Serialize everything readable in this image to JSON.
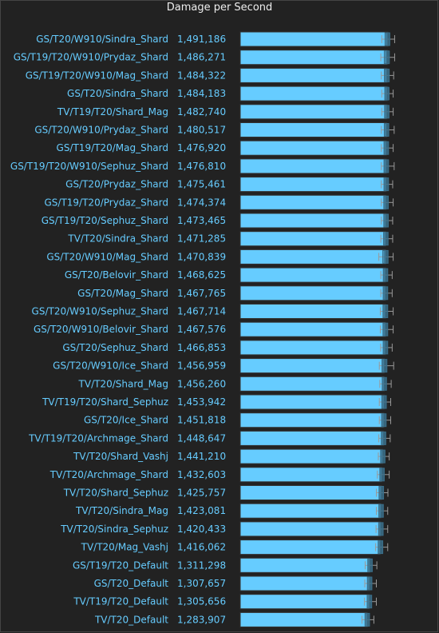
{
  "chart_data": {
    "type": "bar",
    "orientation": "horizontal",
    "title": "Damage per Second",
    "colors": {
      "background": "#222222",
      "bar": "#66ccff",
      "bar_border": "#333333",
      "label": "#66ccff",
      "box": "#3a6f8a",
      "whisker": "#999999",
      "title": "#eeeeee"
    },
    "xlim": [
      0,
      1560000
    ],
    "rows": [
      {
        "name": "GS/T20/W910/Sindra_Shard",
        "value": 1491186,
        "value_label": "1,491,186",
        "q1": 1462000,
        "q3": 1510000,
        "min": 1430000,
        "max": 1560000
      },
      {
        "name": "GS/T19/T20/W910/Prydaz_Shard",
        "value": 1486271,
        "value_label": "1,486,271",
        "q1": 1455000,
        "q3": 1505000,
        "min": 1420000,
        "max": 1560000
      },
      {
        "name": "GS/T19/T20/W910/Mag_Shard",
        "value": 1484322,
        "value_label": "1,484,322",
        "q1": 1456000,
        "q3": 1505000,
        "min": 1425000,
        "max": 1550000
      },
      {
        "name": "GS/T20/Sindra_Shard",
        "value": 1484183,
        "value_label": "1,484,183",
        "q1": 1460000,
        "q3": 1500000,
        "min": 1430000,
        "max": 1545000
      },
      {
        "name": "TV/T19/T20/Shard_Mag",
        "value": 1482740,
        "value_label": "1,482,740",
        "q1": 1458000,
        "q3": 1502000,
        "min": 1430000,
        "max": 1545000
      },
      {
        "name": "GS/T20/W910/Prydaz_Shard",
        "value": 1480517,
        "value_label": "1,480,517",
        "q1": 1455000,
        "q3": 1500000,
        "min": 1425000,
        "max": 1555000
      },
      {
        "name": "GS/T19/T20/Mag_Shard",
        "value": 1476920,
        "value_label": "1,476,920",
        "q1": 1452000,
        "q3": 1498000,
        "min": 1425000,
        "max": 1545000
      },
      {
        "name": "GS/T19/T20/W910/Sephuz_Shard",
        "value": 1476810,
        "value_label": "1,476,810",
        "q1": 1452000,
        "q3": 1498000,
        "min": 1425000,
        "max": 1555000
      },
      {
        "name": "GS/T20/Prydaz_Shard",
        "value": 1475461,
        "value_label": "1,475,461",
        "q1": 1452000,
        "q3": 1498000,
        "min": 1425000,
        "max": 1540000
      },
      {
        "name": "GS/T19/T20/Prydaz_Shard",
        "value": 1474374,
        "value_label": "1,474,374",
        "q1": 1450000,
        "q3": 1496000,
        "min": 1425000,
        "max": 1545000
      },
      {
        "name": "GS/T19/T20/Sephuz_Shard",
        "value": 1473465,
        "value_label": "1,473,465",
        "q1": 1450000,
        "q3": 1496000,
        "min": 1425000,
        "max": 1540000
      },
      {
        "name": "TV/T20/Sindra_Shard",
        "value": 1471285,
        "value_label": "1,471,285",
        "q1": 1448000,
        "q3": 1494000,
        "min": 1420000,
        "max": 1540000
      },
      {
        "name": "GS/T20/W910/Mag_Shard",
        "value": 1470839,
        "value_label": "1,470,839",
        "q1": 1440000,
        "q3": 1494000,
        "min": 1400000,
        "max": 1545000
      },
      {
        "name": "GS/T20/Belovir_Shard",
        "value": 1468625,
        "value_label": "1,468,625",
        "q1": 1445000,
        "q3": 1490000,
        "min": 1420000,
        "max": 1535000
      },
      {
        "name": "GS/T20/Mag_Shard",
        "value": 1467765,
        "value_label": "1,467,765",
        "q1": 1444000,
        "q3": 1490000,
        "min": 1420000,
        "max": 1535000
      },
      {
        "name": "GS/T20/W910/Sephuz_Shard",
        "value": 1467714,
        "value_label": "1,467,714",
        "q1": 1442000,
        "q3": 1490000,
        "min": 1415000,
        "max": 1545000
      },
      {
        "name": "GS/T20/W910/Belovir_Shard",
        "value": 1467576,
        "value_label": "1,467,576",
        "q1": 1442000,
        "q3": 1490000,
        "min": 1415000,
        "max": 1545000
      },
      {
        "name": "GS/T20/Sephuz_Shard",
        "value": 1466853,
        "value_label": "1,466,853",
        "q1": 1444000,
        "q3": 1490000,
        "min": 1418000,
        "max": 1535000
      },
      {
        "name": "GS/T20/W910/Ice_Shard",
        "value": 1456959,
        "value_label": "1,456,959",
        "q1": 1432000,
        "q3": 1482000,
        "min": 1405000,
        "max": 1550000
      },
      {
        "name": "TV/T20/Shard_Mag",
        "value": 1456260,
        "value_label": "1,456,260",
        "q1": 1434000,
        "q3": 1478000,
        "min": 1410000,
        "max": 1525000
      },
      {
        "name": "TV/T19/T20/Shard_Sephuz",
        "value": 1453942,
        "value_label": "1,453,942",
        "q1": 1430000,
        "q3": 1476000,
        "min": 1405000,
        "max": 1520000
      },
      {
        "name": "GS/T20/Ice_Shard",
        "value": 1451818,
        "value_label": "1,451,818",
        "q1": 1428000,
        "q3": 1474000,
        "min": 1405000,
        "max": 1520000
      },
      {
        "name": "TV/T19/T20/Archmage_Shard",
        "value": 1448647,
        "value_label": "1,448,647",
        "q1": 1425000,
        "q3": 1470000,
        "min": 1400000,
        "max": 1515000
      },
      {
        "name": "TV/T20/Shard_Vashj",
        "value": 1441210,
        "value_label": "1,441,210",
        "q1": 1418000,
        "q3": 1462000,
        "min": 1395000,
        "max": 1505000
      },
      {
        "name": "TV/T20/Archmage_Shard",
        "value": 1432603,
        "value_label": "1,432,603",
        "q1": 1410000,
        "q3": 1455000,
        "min": 1385000,
        "max": 1505000
      },
      {
        "name": "TV/T20/Shard_Sephuz",
        "value": 1425757,
        "value_label": "1,425,757",
        "q1": 1402000,
        "q3": 1448000,
        "min": 1375000,
        "max": 1492000
      },
      {
        "name": "TV/T20/Sindra_Mag",
        "value": 1423081,
        "value_label": "1,423,081",
        "q1": 1400000,
        "q3": 1446000,
        "min": 1375000,
        "max": 1490000
      },
      {
        "name": "TV/T20/Sindra_Sephuz",
        "value": 1420433,
        "value_label": "1,420,433",
        "q1": 1398000,
        "q3": 1444000,
        "min": 1372000,
        "max": 1490000
      },
      {
        "name": "TV/T20/Mag_Vashj",
        "value": 1416062,
        "value_label": "1,416,062",
        "q1": 1393000,
        "q3": 1440000,
        "min": 1368000,
        "max": 1490000
      },
      {
        "name": "GS/T19/T20_Default",
        "value": 1311298,
        "value_label": "1,311,298",
        "q1": 1288000,
        "q3": 1334000,
        "min": 1262000,
        "max": 1380000
      },
      {
        "name": "GS/T20_Default",
        "value": 1307657,
        "value_label": "1,307,657",
        "q1": 1284000,
        "q3": 1330000,
        "min": 1258000,
        "max": 1375000
      },
      {
        "name": "TV/T19/T20_Default",
        "value": 1305656,
        "value_label": "1,305,656",
        "q1": 1282000,
        "q3": 1328000,
        "min": 1255000,
        "max": 1375000
      },
      {
        "name": "TV/T20_Default",
        "value": 1283907,
        "value_label": "1,283,907",
        "q1": 1260000,
        "q3": 1306000,
        "min": 1230000,
        "max": 1350000
      }
    ]
  }
}
